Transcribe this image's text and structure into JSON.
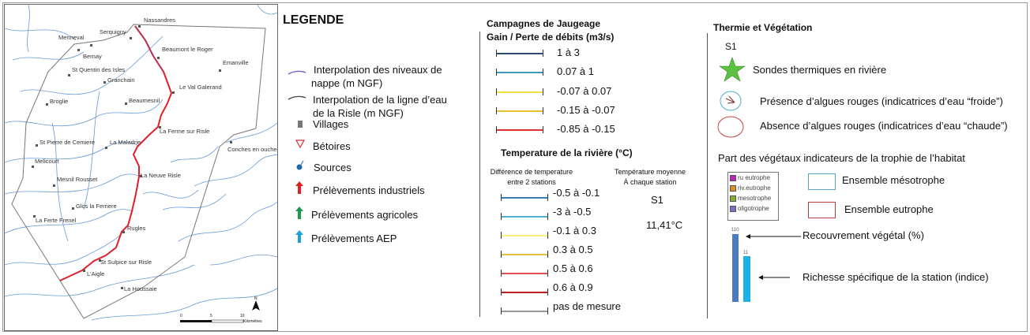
{
  "map": {
    "villages": [
      {
        "name": "Nassandres"
      },
      {
        "name": "Serquigny"
      },
      {
        "name": "Menneval"
      },
      {
        "name": "Bernay"
      },
      {
        "name": "St Quentin des Isles"
      },
      {
        "name": "Granchain"
      },
      {
        "name": "Broglie"
      },
      {
        "name": "Beaumesnil"
      },
      {
        "name": "Beaumont le Roger"
      },
      {
        "name": "Emanville"
      },
      {
        "name": "Le Val Galerand"
      },
      {
        "name": "La Ferme sur Risle"
      },
      {
        "name": "Conches en ouche"
      },
      {
        "name": "St Pierre de Cemiere"
      },
      {
        "name": "La Maladrie"
      },
      {
        "name": "Melicourt"
      },
      {
        "name": "La Neuve Risle"
      },
      {
        "name": "Mesnil Rousset"
      },
      {
        "name": "Glos la Ferriere"
      },
      {
        "name": "La Ferte Frenel"
      },
      {
        "name": "Rugles"
      },
      {
        "name": "St Sulpice sur Risle"
      },
      {
        "name": "L'Aigle"
      },
      {
        "name": "La Houssaie"
      }
    ],
    "scale": {
      "ticks": [
        "0",
        "5",
        "10"
      ],
      "unit": "Kilomètres"
    },
    "north_arrow": "N",
    "colors": {
      "river": "#e0202a",
      "streams": "#3d7fd1",
      "boundary": "#777777"
    }
  },
  "legend": {
    "title": "LEGENDE",
    "items": [
      {
        "label_l1": "Interpolation des niveaux de",
        "label_l2": "nappe (m NGF)",
        "icon": "purple-line-icon"
      },
      {
        "label_l1": "Interpolation de la ligne d’eau",
        "label_l2": "de la Risle (m NGF)",
        "icon": "gray-line-icon"
      },
      {
        "label": "Villages",
        "icon": "square-icon"
      },
      {
        "label": "Bétoires",
        "icon": "triangle-down-icon"
      },
      {
        "label": "Sources",
        "icon": "source-icon"
      },
      {
        "label": "Prélèvements industriels",
        "icon": "red-arrow-icon",
        "color": "#e02020"
      },
      {
        "label": "Prélèvements agricoles",
        "icon": "green-arrow-icon",
        "color": "#1a9a4a"
      },
      {
        "label": "Prélèvements AEP",
        "icon": "blue-arrow-icon",
        "color": "#1aa0e0"
      }
    ]
  },
  "jaugeage": {
    "title_l1": "Campagnes de Jaugeage",
    "title_l2": "Gain / Perte de débits (m3/s)",
    "classes": [
      {
        "label": "1 à 3",
        "color": "#2a4a70"
      },
      {
        "label": "0.07 à 1",
        "color": "#3a9ac0"
      },
      {
        "label": "-0.07 à 0.07",
        "color": "#f0e040"
      },
      {
        "label": "-0.15 à -0.07",
        "color": "#e8c030"
      },
      {
        "label": "-0.85 à -0.15",
        "color": "#e03030"
      }
    ]
  },
  "temperature": {
    "title": "Temperature de la rivière (°C)",
    "diff_title_l1": "Différence de temperature",
    "diff_title_l2": "entre 2 stations",
    "mean_title_l1": "Température moyenne",
    "mean_title_l2": "À chaque station",
    "station": "S1",
    "mean_value": "11,41°C",
    "classes": [
      {
        "label": "-0.5 à -0.1",
        "color": "#3a7ab0"
      },
      {
        "label": "-3 à -0.5",
        "color": "#50b0d0"
      },
      {
        "label": "-0.1 à 0.3",
        "color": "#f5f080"
      },
      {
        "label": "0.3 à 0.5",
        "color": "#e8c040"
      },
      {
        "label": "0.5 à 0.6",
        "color": "#e05050"
      },
      {
        "label": "0.6 à 0.9",
        "color": "#c02020"
      },
      {
        "label": "pas de mesure",
        "color": "#999999"
      }
    ]
  },
  "thermie": {
    "title": "Thermie et Végétation",
    "station": "S1",
    "sondes": "Sondes thermiques en rivière",
    "presence": "Présence d’algues rouges (indicatrices d’eau “froide”)",
    "absence": "Absence d’algues rouges (indicatrices d’eau “chaude”)",
    "part_title": "Part des végétaux indicateurs de la trophie de l’habitat",
    "mini_legend": [
      {
        "label": "ru eutrophe",
        "color": "#c020c0"
      },
      {
        "label": "riv.eutrophe",
        "color": "#e09020"
      },
      {
        "label": "mesotrophe",
        "color": "#80b030"
      },
      {
        "label": "oligotrophe",
        "color": "#7070d0"
      }
    ],
    "meso": "Ensemble mésotrophe",
    "meso_color": "#5aa0c0",
    "eutro": "Ensemble eutrophe",
    "eutro_color": "#b04040",
    "bar1_value": "110",
    "bar2_value": "11",
    "bar1_label": "Recouvrement végétal (%)",
    "bar2_label": "Richesse spécifique de la station (indice)"
  }
}
